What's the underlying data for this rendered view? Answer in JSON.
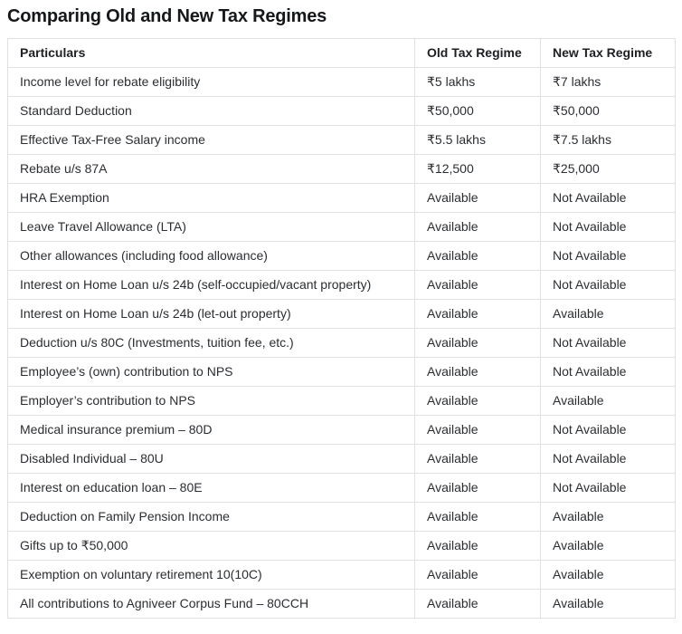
{
  "page": {
    "title": "Comparing Old and New Tax Regimes"
  },
  "colors": {
    "background": "#ffffff",
    "border": "#e0e0e0",
    "title_text": "#15181b",
    "header_text": "#1c1f23",
    "body_text": "#2a2e33"
  },
  "table": {
    "headers": [
      "Particulars",
      "Old Tax Regime",
      "New Tax Regime"
    ],
    "rows": [
      [
        "Income level for rebate eligibility",
        "₹5 lakhs",
        "₹7 lakhs"
      ],
      [
        "Standard Deduction",
        "₹50,000",
        "₹50,000"
      ],
      [
        "Effective Tax-Free Salary income",
        "₹5.5 lakhs",
        "₹7.5 lakhs"
      ],
      [
        "Rebate u/s 87A",
        "₹12,500",
        "₹25,000"
      ],
      [
        "HRA Exemption",
        "Available",
        "Not Available"
      ],
      [
        "Leave Travel Allowance (LTA)",
        "Available",
        "Not Available"
      ],
      [
        "Other allowances (including food allowance)",
        "Available",
        "Not Available"
      ],
      [
        "Interest on Home Loan u/s 24b (self-occupied/vacant property)",
        "Available",
        "Not Available"
      ],
      [
        "Interest on Home Loan u/s 24b (let-out property)",
        "Available",
        "Available"
      ],
      [
        "Deduction u/s 80C (Investments, tuition fee, etc.)",
        "Available",
        "Not Available"
      ],
      [
        "Employee’s (own) contribution to NPS",
        "Available",
        "Not Available"
      ],
      [
        "Employer’s contribution to NPS",
        "Available",
        "Available"
      ],
      [
        "Medical insurance premium – 80D",
        "Available",
        "Not Available"
      ],
      [
        "Disabled Individual – 80U",
        "Available",
        "Not Available"
      ],
      [
        "Interest on education loan – 80E",
        "Available",
        "Not Available"
      ],
      [
        "Deduction on Family Pension Income",
        "Available",
        "Available"
      ],
      [
        "Gifts up to ₹50,000",
        "Available",
        "Available"
      ],
      [
        "Exemption on voluntary retirement 10(10C)",
        "Available",
        "Available"
      ],
      [
        "All contributions to Agniveer Corpus Fund – 80CCH",
        "Available",
        "Available"
      ]
    ]
  }
}
